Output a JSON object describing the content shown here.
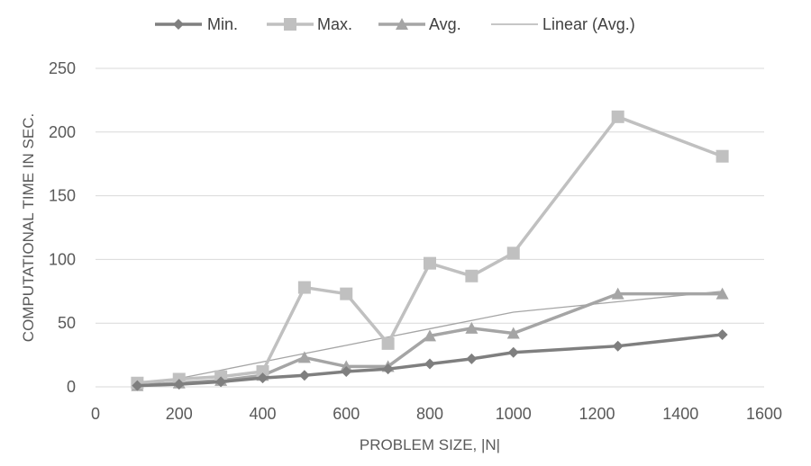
{
  "chart_data": {
    "type": "line",
    "xlabel": "PROBLEM SIZE, |N|",
    "ylabel": "COMPUTATIONAL TIME IN SEC.",
    "xlim": [
      0,
      1600
    ],
    "ylim": [
      0,
      250
    ],
    "xticks": [
      "0",
      "200",
      "400",
      "600",
      "800",
      "1000",
      "1200",
      "1400",
      "1600"
    ],
    "yticks": [
      "0",
      "50",
      "100",
      "150",
      "200",
      "250"
    ],
    "grid": "horizontal",
    "legend_position": "top",
    "x": [
      100,
      200,
      300,
      400,
      500,
      600,
      700,
      800,
      900,
      1000,
      1250,
      1500
    ],
    "series": [
      {
        "name": "Min.",
        "marker": "diamond",
        "color": "#7f7f7f",
        "values": [
          1,
          2,
          4,
          7,
          9,
          12,
          14,
          18,
          22,
          27,
          32,
          41
        ]
      },
      {
        "name": "Max.",
        "marker": "square",
        "color": "#c0c0c0",
        "values": [
          3,
          6,
          8,
          12,
          78,
          73,
          34,
          97,
          87,
          105,
          212,
          181
        ]
      },
      {
        "name": "Avg.",
        "marker": "triangle",
        "color": "#a5a5a5",
        "values": [
          1,
          3,
          5,
          9,
          23,
          16,
          16,
          40,
          46,
          42,
          73,
          73
        ]
      },
      {
        "name": "Linear (Avg.)",
        "marker": "none",
        "color": "#a5a5a5",
        "values": [
          0.1,
          6.6,
          13.1,
          19.6,
          26.1,
          32.6,
          39.1,
          45.6,
          52.1,
          58.6,
          66.8,
          75.0
        ]
      }
    ]
  }
}
